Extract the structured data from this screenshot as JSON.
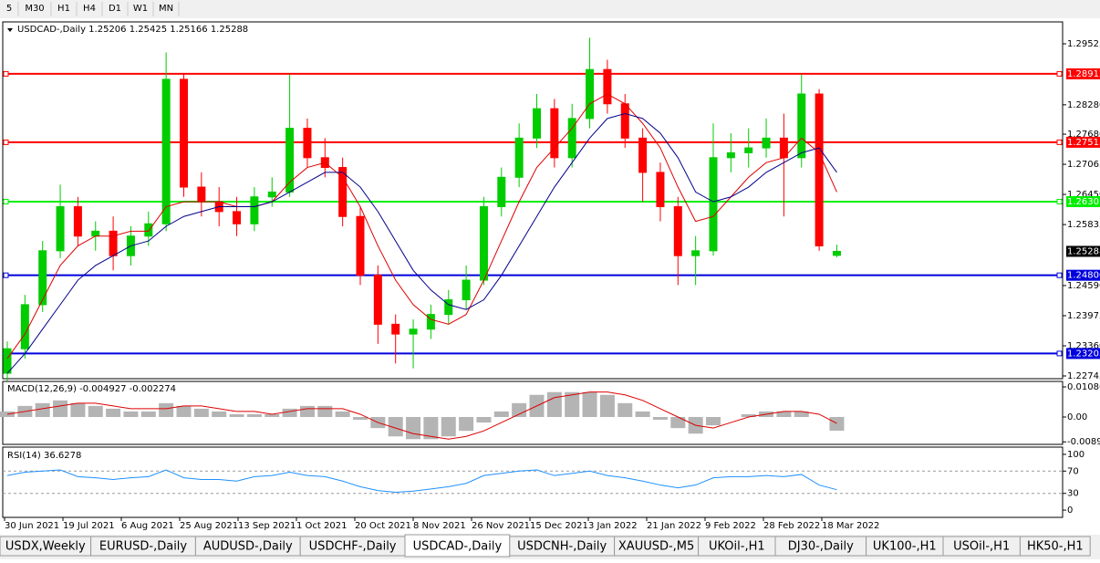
{
  "toolbar": [
    "5",
    "M30",
    "H1",
    "H4",
    "D1",
    "W1",
    "MN"
  ],
  "chart_data": {
    "type": "candlestick",
    "symbol": "USDCAD-,Daily",
    "ohlc": [
      [
        1.228,
        1.2345,
        1.2265,
        1.233
      ],
      [
        1.233,
        1.244,
        1.231,
        1.242
      ],
      [
        1.242,
        1.255,
        1.2405,
        1.253
      ],
      [
        1.253,
        1.2665,
        1.2515,
        1.262
      ],
      [
        1.262,
        1.264,
        1.254,
        1.256
      ],
      [
        1.256,
        1.259,
        1.253,
        1.257
      ],
      [
        1.257,
        1.26,
        1.249,
        1.252
      ],
      [
        1.252,
        1.258,
        1.25,
        1.256
      ],
      [
        1.256,
        1.261,
        1.254,
        1.2585
      ],
      [
        1.2585,
        1.2935,
        1.257,
        1.288
      ],
      [
        1.288,
        1.289,
        1.264,
        1.266
      ],
      [
        1.266,
        1.269,
        1.26,
        1.263
      ],
      [
        1.263,
        1.266,
        1.258,
        1.261
      ],
      [
        1.261,
        1.264,
        1.256,
        1.2585
      ],
      [
        1.2585,
        1.266,
        1.257,
        1.264
      ],
      [
        1.264,
        1.268,
        1.262,
        1.265
      ],
      [
        1.265,
        1.289,
        1.264,
        1.278
      ],
      [
        1.278,
        1.28,
        1.27,
        1.272
      ],
      [
        1.272,
        1.276,
        1.268,
        1.27
      ],
      [
        1.27,
        1.272,
        1.258,
        1.26
      ],
      [
        1.26,
        1.262,
        1.246,
        1.248
      ],
      [
        1.248,
        1.25,
        1.234,
        1.238
      ],
      [
        1.238,
        1.24,
        1.23,
        1.236
      ],
      [
        1.236,
        1.239,
        1.229,
        1.237
      ],
      [
        1.237,
        1.242,
        1.235,
        1.24
      ],
      [
        1.24,
        1.245,
        1.238,
        1.243
      ],
      [
        1.243,
        1.25,
        1.241,
        1.247
      ],
      [
        1.247,
        1.264,
        1.246,
        1.262
      ],
      [
        1.262,
        1.27,
        1.26,
        1.268
      ],
      [
        1.268,
        1.279,
        1.266,
        1.276
      ],
      [
        1.276,
        1.285,
        1.274,
        1.282
      ],
      [
        1.282,
        1.284,
        1.27,
        1.272
      ],
      [
        1.272,
        1.283,
        1.27,
        1.28
      ],
      [
        1.28,
        1.2965,
        1.278,
        1.29
      ],
      [
        1.29,
        1.292,
        1.281,
        1.283
      ],
      [
        1.283,
        1.285,
        1.274,
        1.276
      ],
      [
        1.276,
        1.278,
        1.263,
        1.269
      ],
      [
        1.269,
        1.271,
        1.259,
        1.262
      ],
      [
        1.262,
        1.264,
        1.246,
        1.252
      ],
      [
        1.252,
        1.256,
        1.246,
        1.253
      ],
      [
        1.253,
        1.279,
        1.252,
        1.272
      ],
      [
        1.272,
        1.277,
        1.269,
        1.273
      ],
      [
        1.273,
        1.278,
        1.27,
        1.274
      ],
      [
        1.274,
        1.28,
        1.272,
        1.276
      ],
      [
        1.276,
        1.281,
        1.26,
        1.272
      ],
      [
        1.272,
        1.289,
        1.27,
        1.285
      ],
      [
        1.285,
        1.286,
        1.253,
        1.254
      ],
      [
        1.25206,
        1.25425,
        1.25166,
        1.25288
      ]
    ],
    "up_color": "#00cc00",
    "down_color": "#ff0000",
    "ma_fast": {
      "color": "#dd0000",
      "values": [
        1.231,
        1.236,
        1.243,
        1.25,
        1.254,
        1.256,
        1.256,
        1.257,
        1.257,
        1.262,
        1.263,
        1.263,
        1.263,
        1.262,
        1.262,
        1.263,
        1.267,
        1.27,
        1.271,
        1.268,
        1.262,
        1.254,
        1.247,
        1.242,
        1.239,
        1.238,
        1.24,
        1.247,
        1.255,
        1.263,
        1.27,
        1.274,
        1.278,
        1.283,
        1.285,
        1.283,
        1.279,
        1.274,
        1.266,
        1.259,
        1.26,
        1.264,
        1.268,
        1.271,
        1.272,
        1.276,
        1.273,
        1.265
      ]
    },
    "ma_slow": {
      "color": "#00008b",
      "values": [
        1.228,
        1.232,
        1.237,
        1.242,
        1.247,
        1.25,
        1.252,
        1.254,
        1.255,
        1.258,
        1.26,
        1.261,
        1.262,
        1.262,
        1.262,
        1.263,
        1.265,
        1.267,
        1.269,
        1.269,
        1.266,
        1.261,
        1.255,
        1.249,
        1.245,
        1.242,
        1.241,
        1.243,
        1.248,
        1.254,
        1.26,
        1.266,
        1.271,
        1.276,
        1.28,
        1.281,
        1.28,
        1.277,
        1.272,
        1.265,
        1.263,
        1.264,
        1.266,
        1.269,
        1.271,
        1.273,
        1.274,
        1.269
      ]
    },
    "ylim": [
      1.22689,
      1.29972
    ],
    "yticks": [
      {
        "value": 1.29525,
        "label": "1.29525"
      },
      {
        "value": 1.2828,
        "label": "1.28280"
      },
      {
        "value": 1.2768,
        "label": "1.27680"
      },
      {
        "value": 1.27065,
        "label": "1.27065"
      },
      {
        "value": 1.2645,
        "label": "1.26450"
      },
      {
        "value": 1.25835,
        "label": "1.25835"
      },
      {
        "value": 1.2459,
        "label": "1.24590"
      },
      {
        "value": 1.23975,
        "label": "1.23975"
      },
      {
        "value": 1.2336,
        "label": "1.23360"
      },
      {
        "value": 1.22745,
        "label": "1.22745"
      }
    ],
    "levels": [
      {
        "value": 1.28912,
        "label": "1.28912",
        "color": "#ff0000"
      },
      {
        "value": 1.27515,
        "label": "1.27515",
        "color": "#ff0000"
      },
      {
        "value": 1.26303,
        "label": "1.26303",
        "color": "#00ee00"
      },
      {
        "value": 1.248,
        "label": "1.24800",
        "color": "#0000dd"
      },
      {
        "value": 1.23203,
        "label": "1.23203",
        "color": "#0000dd"
      }
    ],
    "x_labels": [
      "30 Jun 2021",
      "19 Jul 2021",
      "6 Aug 2021",
      "25 Aug 2021",
      "13 Sep 2021",
      "1 Oct 2021",
      "20 Oct 2021",
      "8 Nov 2021",
      "26 Nov 2021",
      "15 Dec 2021",
      "3 Jan 2022",
      "21 Jan 2022",
      "9 Feb 2022",
      "28 Feb 2022",
      "18 Mar 2022"
    ],
    "macd": {
      "title": "MACD(12,26,9)",
      "hist_color": "#b4b4b4",
      "signal_color": "#dd0000",
      "histogram": [
        0.002,
        0.004,
        0.005,
        0.006,
        0.005,
        0.004,
        0.003,
        0.002,
        0.002,
        0.005,
        0.004,
        0.003,
        0.002,
        0.001,
        0.001,
        0.001,
        0.003,
        0.004,
        0.004,
        0.002,
        -0.001,
        -0.004,
        -0.007,
        -0.008,
        -0.008,
        -0.007,
        -0.005,
        -0.002,
        0.002,
        0.005,
        0.008,
        0.009,
        0.009,
        0.009,
        0.008,
        0.005,
        0.002,
        -0.001,
        -0.004,
        -0.006,
        -0.003,
        0,
        0.001,
        0.002,
        0.002,
        0.002,
        0,
        -0.004927
      ],
      "signal": [
        0.001,
        0.002,
        0.003,
        0.004,
        0.005,
        0.005,
        0.004,
        0.003,
        0.003,
        0.003,
        0.004,
        0.004,
        0.003,
        0.002,
        0.002,
        0.001,
        0.002,
        0.003,
        0.003,
        0.003,
        0.001,
        -0.002,
        -0.004,
        -0.006,
        -0.007,
        -0.008,
        -0.007,
        -0.005,
        -0.002,
        0.001,
        0.004,
        0.007,
        0.008,
        0.009,
        0.009,
        0.008,
        0.006,
        0.003,
        0,
        -0.003,
        -0.004,
        -0.002,
        0,
        0.001,
        0.002,
        0.002,
        0.001,
        -0.002274
      ],
      "ylim": [
        -0.00988,
        0.01285
      ],
      "yticks": [
        {
          "value": 0.010869,
          "label": "0.010869"
        },
        {
          "value": 0,
          "label": "0.00"
        },
        {
          "value": -0.00897,
          "label": "-0.00897"
        }
      ]
    },
    "rsi": {
      "title": "RSI(14)",
      "color": "#1e90ff",
      "values": [
        62,
        68,
        70,
        72,
        60,
        58,
        55,
        58,
        60,
        72,
        58,
        55,
        55,
        52,
        60,
        62,
        68,
        62,
        60,
        52,
        42,
        35,
        32,
        34,
        38,
        42,
        48,
        62,
        66,
        70,
        72,
        62,
        66,
        70,
        62,
        58,
        52,
        45,
        40,
        45,
        58,
        60,
        60,
        62,
        60,
        64,
        45,
        36.6278
      ],
      "ylim": [
        -13,
        113
      ],
      "yticks": [
        100,
        70,
        30,
        0
      ],
      "levels": [
        70,
        30
      ]
    }
  },
  "tabs": [
    "USDX,Weekly",
    "EURUSD-,Daily",
    "AUDUSD-,Daily",
    "USDCHF-,Daily",
    "USDCAD-,Daily",
    "USDCNH-,Daily",
    "XAUUSD-,M5",
    "UKOil-,H1",
    "DJ30-,Daily",
    "UK100-,H1",
    "USOil-,H1",
    "HK50-,H1"
  ],
  "active_tab": 4
}
